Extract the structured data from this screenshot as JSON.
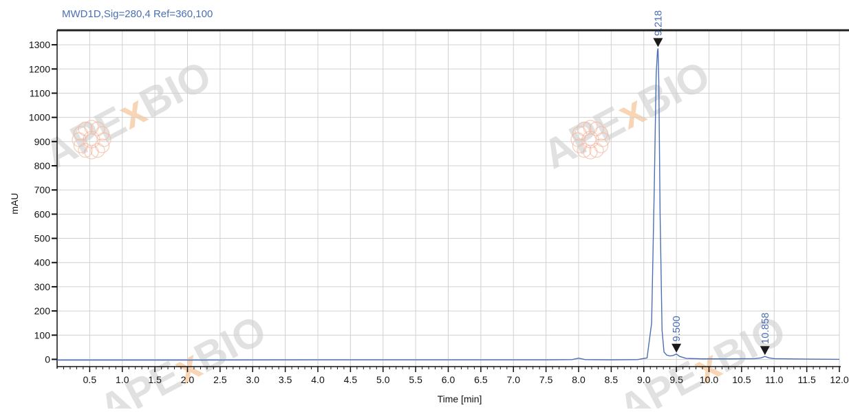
{
  "signal_title": "MWD1D,Sig=280,4  Ref=360,100",
  "watermark": {
    "brand_left": "APE",
    "brand_x": "x",
    "brand_right": "BIO"
  },
  "colors": {
    "trace": "#4a6fb5",
    "grid": "#d0d0d0",
    "axis": "#111111",
    "frame": "#222222"
  },
  "chart_data": {
    "type": "line",
    "title": "MWD1D,Sig=280,4  Ref=360,100",
    "xlabel": "Time [min]",
    "ylabel": "mAU",
    "xlim": [
      0,
      12.0
    ],
    "ylim": [
      -30,
      1360
    ],
    "x_ticks": [
      "0.5",
      "1.0",
      "1.5",
      "2.0",
      "2.5",
      "3.0",
      "3.5",
      "4.0",
      "4.5",
      "5.0",
      "5.5",
      "6.0",
      "6.5",
      "7.0",
      "7.5",
      "8.0",
      "8.5",
      "9.0",
      "9.5",
      "10.0",
      "10.5",
      "11.0",
      "11.5",
      "12.0"
    ],
    "y_ticks": [
      "0",
      "100",
      "200",
      "300",
      "400",
      "500",
      "600",
      "700",
      "800",
      "900",
      "1000",
      "1100",
      "1200",
      "1300"
    ],
    "grid": true,
    "series": [
      {
        "x": [
          0.0,
          2.0,
          4.0,
          6.0,
          7.5,
          7.9,
          8.0,
          8.1,
          8.5,
          8.9,
          9.05,
          9.12,
          9.16,
          9.19,
          9.21,
          9.218,
          9.23,
          9.25,
          9.28,
          9.31,
          9.35,
          9.4,
          9.45,
          9.5,
          9.55,
          9.65,
          9.9,
          10.3,
          10.7,
          10.8,
          10.858,
          10.92,
          11.0,
          11.5,
          12.0
        ],
        "y": [
          -3,
          -3,
          -2,
          -2,
          -2,
          -1,
          5,
          -1,
          -2,
          -1,
          6,
          150,
          700,
          1180,
          1275,
          1285,
          1150,
          600,
          120,
          30,
          18,
          14,
          16,
          22,
          12,
          4,
          2,
          2,
          3,
          6,
          12,
          6,
          3,
          1,
          0
        ]
      }
    ],
    "peaks": [
      {
        "label": "9.218",
        "x": 9.218,
        "y": 1285
      },
      {
        "label": "9.500",
        "x": 9.5,
        "y": 22
      },
      {
        "label": "10.858",
        "x": 10.858,
        "y": 12
      }
    ]
  }
}
